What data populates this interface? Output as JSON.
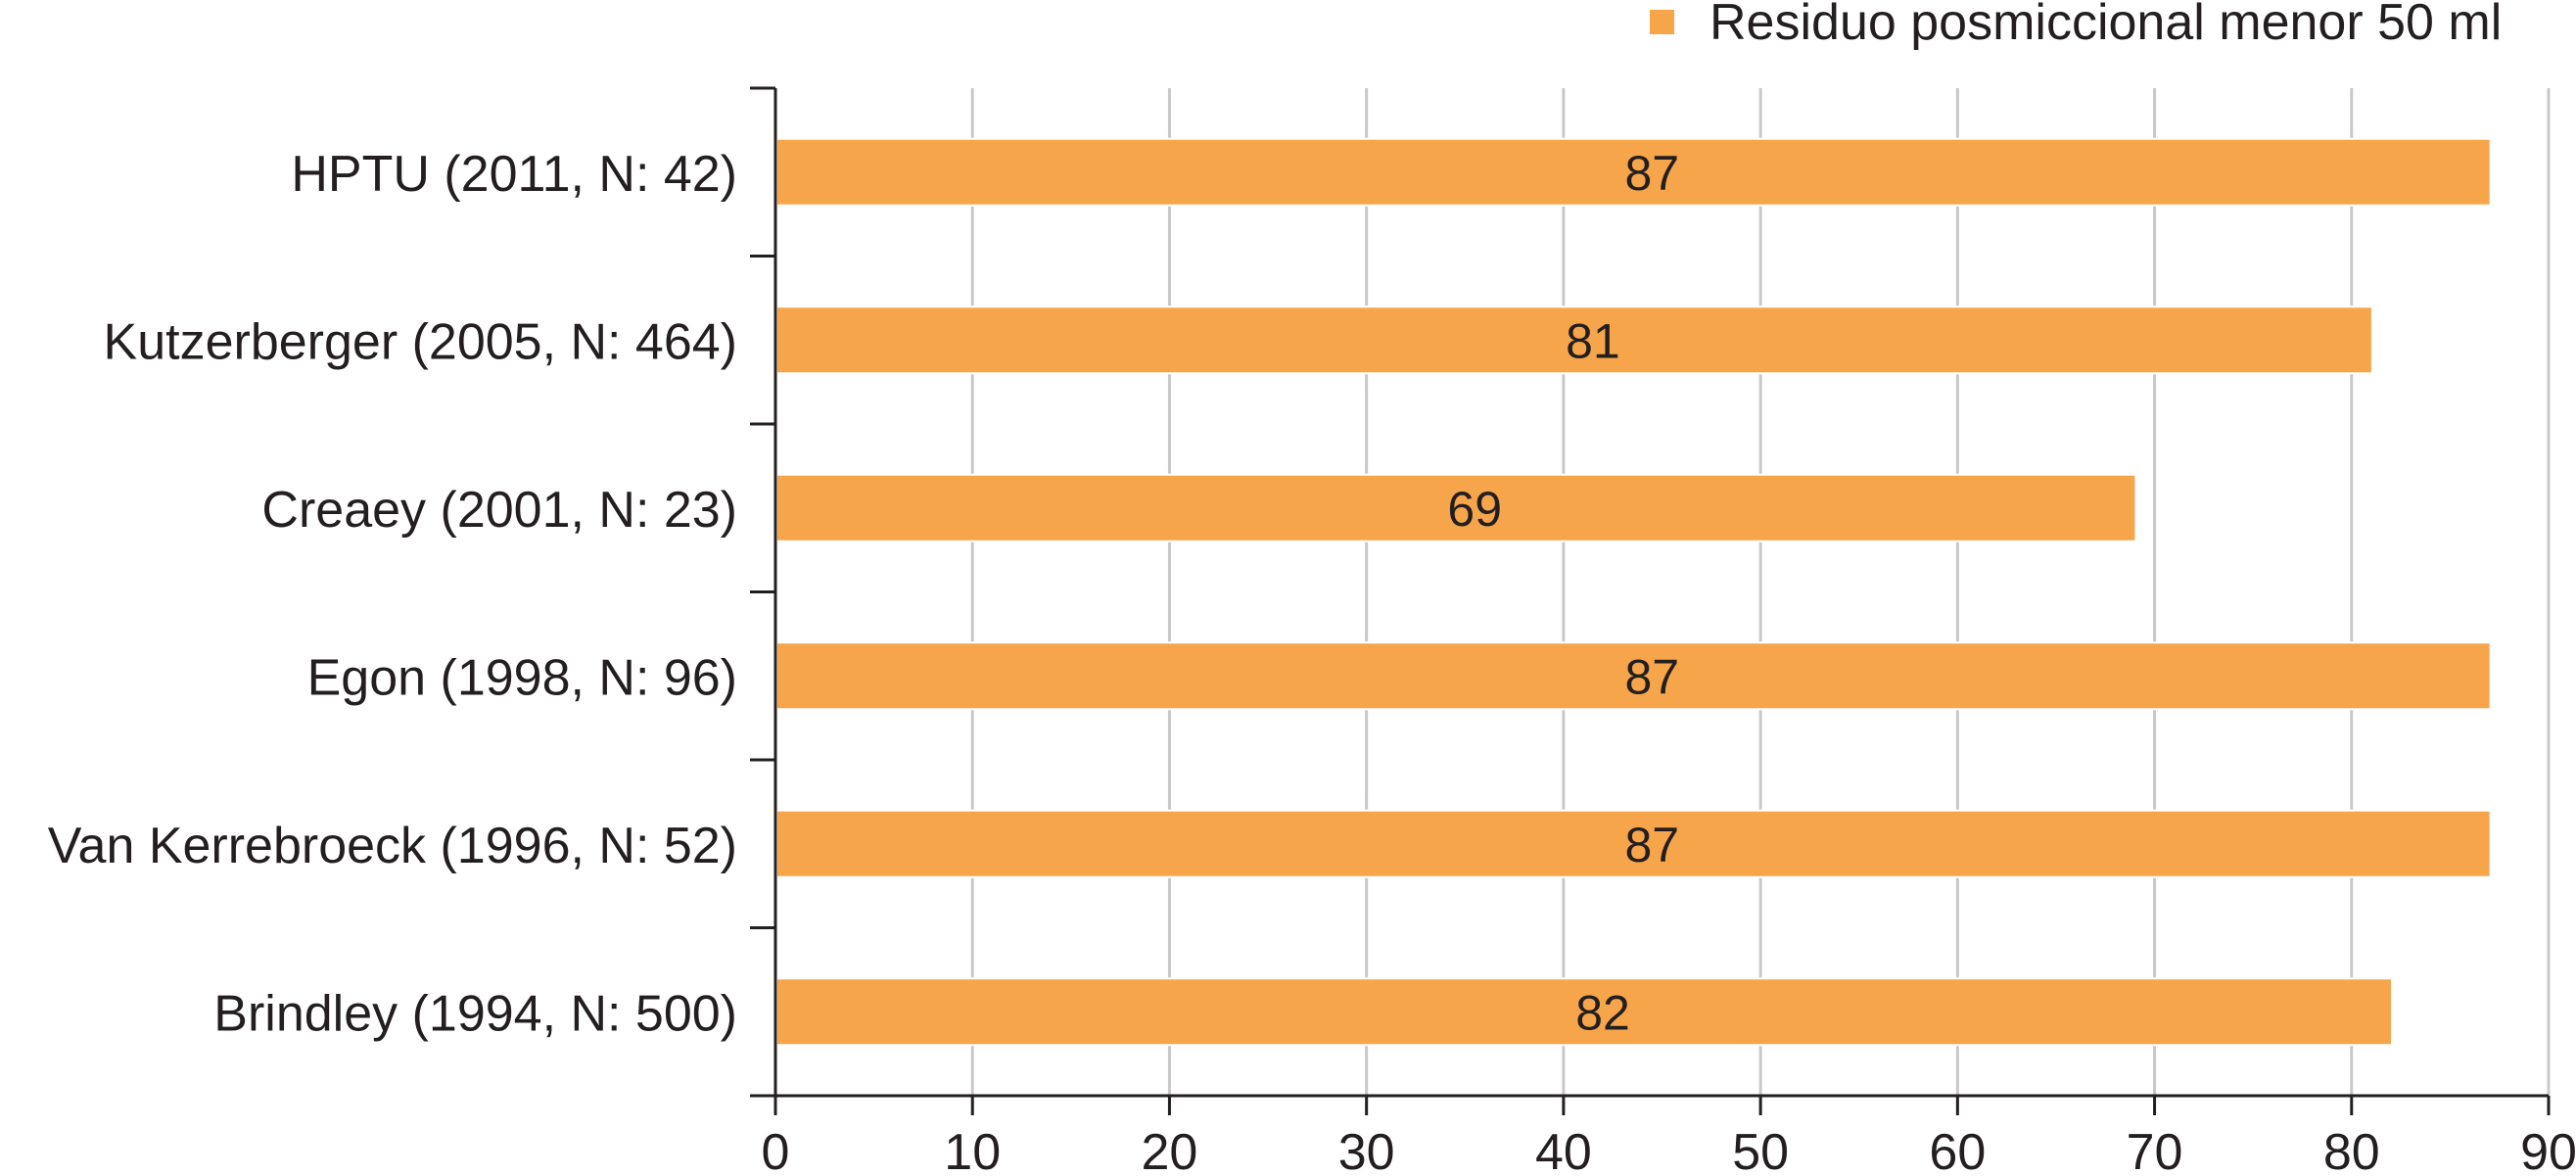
{
  "chart_data": {
    "type": "bar",
    "orientation": "horizontal",
    "categories": [
      "HPTU (2011, N: 42)",
      "Kutzerberger (2005, N: 464)",
      "Creaey (2001, N: 23)",
      "Egon (1998, N: 96)",
      "Van Kerrebroeck (1996, N: 52)",
      "Brindley (1994, N: 500)"
    ],
    "series": [
      {
        "name": "Residuo posmiccional menor 50 ml",
        "values": [
          87,
          81,
          69,
          87,
          87,
          82
        ],
        "color": "#f7a54a"
      }
    ],
    "xlim": [
      0,
      90
    ],
    "xticks": [
      0,
      10,
      20,
      30,
      40,
      50,
      60,
      70,
      80,
      90
    ],
    "grid": true,
    "grid_color": "#c8c8c8",
    "legend_position": "top-right",
    "data_labels": true
  }
}
